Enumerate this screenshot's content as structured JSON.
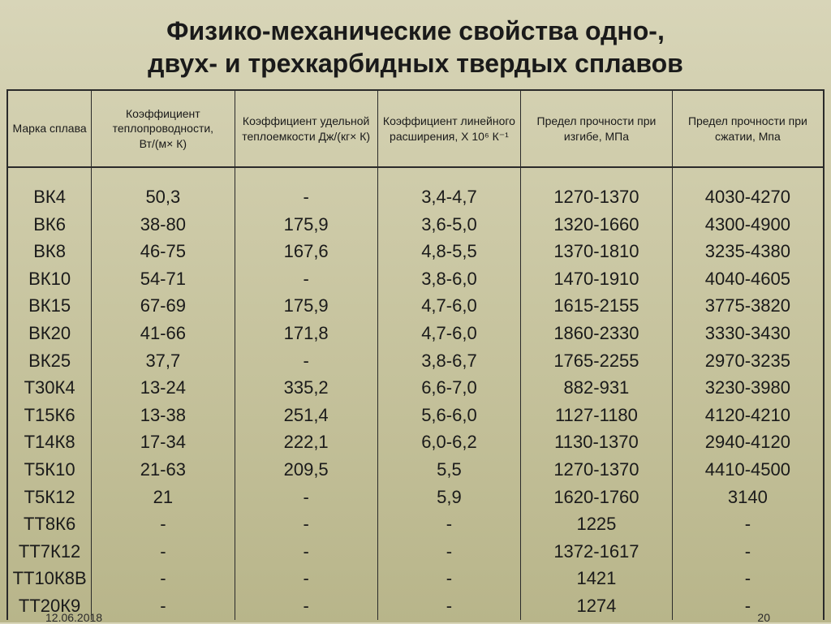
{
  "title_line1": "Физико-механические свойства одно-,",
  "title_line2": "двух- и трехкарбидных твердых сплавов",
  "columns": [
    "Марка сплава",
    "Коэффициент теплопроводности, Вт/(м× К)",
    "Коэффициент удельной теплоемкости Дж/(кг× К)",
    "Коэффициент линейного расширения, Х 10⁶ К⁻¹",
    "Предел прочности при изгибе, МПа",
    "Предел прочности при сжатии, Мпа"
  ],
  "rows": [
    [
      "ВК4",
      "50,3",
      "-",
      "3,4-4,7",
      "1270-1370",
      "4030-4270"
    ],
    [
      "ВК6",
      "38-80",
      "175,9",
      "3,6-5,0",
      "1320-1660",
      "4300-4900"
    ],
    [
      "ВК8",
      "46-75",
      "167,6",
      "4,8-5,5",
      "1370-1810",
      "3235-4380"
    ],
    [
      "ВК10",
      "54-71",
      "-",
      "3,8-6,0",
      "1470-1910",
      "4040-4605"
    ],
    [
      "ВК15",
      "67-69",
      "175,9",
      "4,7-6,0",
      "1615-2155",
      "3775-3820"
    ],
    [
      "ВК20",
      "41-66",
      "171,8",
      "4,7-6,0",
      "1860-2330",
      "3330-3430"
    ],
    [
      "ВК25",
      "37,7",
      "-",
      "3,8-6,7",
      "1765-2255",
      "2970-3235"
    ],
    [
      "Т30К4",
      "13-24",
      "335,2",
      "6,6-7,0",
      "882-931",
      "3230-3980"
    ],
    [
      "Т15К6",
      "13-38",
      "251,4",
      "5,6-6,0",
      "1127-1180",
      "4120-4210"
    ],
    [
      "Т14К8",
      "17-34",
      "222,1",
      "6,0-6,2",
      "1130-1370",
      "2940-4120"
    ],
    [
      "Т5К10",
      "21-63",
      "209,5",
      "5,5",
      "1270-1370",
      "4410-4500"
    ],
    [
      "Т5К12",
      "21",
      "-",
      "5,9",
      "1620-1760",
      "3140"
    ],
    [
      "ТТ8К6",
      "-",
      "-",
      "-",
      "1225",
      "-"
    ],
    [
      "ТТ7К12",
      "-",
      "-",
      "-",
      "1372-1617",
      "-"
    ],
    [
      "ТТ10К8В",
      "-",
      "-",
      "-",
      "1421",
      "-"
    ],
    [
      "ТТ20К9",
      "-",
      "-",
      "-",
      "1274",
      "-"
    ]
  ],
  "footer": {
    "date": "12.06.2018",
    "page": "20"
  },
  "style": {
    "title_fontsize": 32,
    "header_fontsize": 14,
    "cell_fontsize": 22,
    "text_color": "#1a1a1a",
    "border_color": "#2a2a2a",
    "bg_gradient_top": "#d8d5b8",
    "bg_gradient_mid": "#c8c5a0",
    "bg_gradient_bottom": "#b8b58a",
    "col_widths_pct": [
      10,
      17,
      17,
      17,
      18,
      18
    ]
  }
}
